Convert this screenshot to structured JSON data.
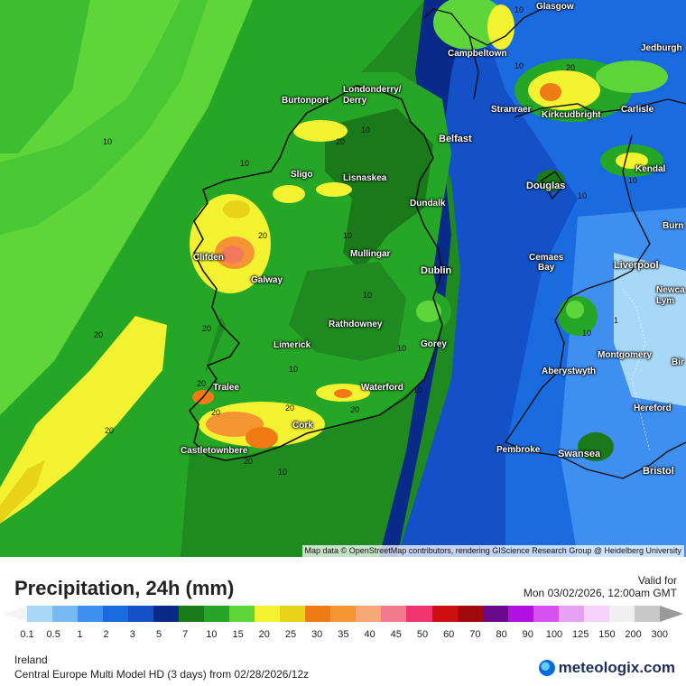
{
  "map": {
    "attribution": "Map data © OpenStreetMap contributors, rendering GIScience Research Group @ Heidelberg University",
    "cities": [
      {
        "name": "Glasgow"
      },
      {
        "name": "Campbeltown"
      },
      {
        "name": "Jedburgh"
      },
      {
        "name": "Londonderry/\nDerry"
      },
      {
        "name": "Burtonport"
      },
      {
        "name": "Stranraer"
      },
      {
        "name": "Kirkcudbright"
      },
      {
        "name": "Carlisle"
      },
      {
        "name": "Belfast"
      },
      {
        "name": "Sligo"
      },
      {
        "name": "Lisnaskea"
      },
      {
        "name": "Kendal"
      },
      {
        "name": "Douglas"
      },
      {
        "name": "Dundalk"
      },
      {
        "name": "Burn"
      },
      {
        "name": "Clifden"
      },
      {
        "name": "Mullingar"
      },
      {
        "name": "Galway"
      },
      {
        "name": "Dublin"
      },
      {
        "name": "Cemaes\nBay"
      },
      {
        "name": "Liverpool"
      },
      {
        "name": "Newca\nLym"
      },
      {
        "name": "Rathdowney"
      },
      {
        "name": "Limerick"
      },
      {
        "name": "Gorey"
      },
      {
        "name": "Montgomery"
      },
      {
        "name": "Aberystwyth"
      },
      {
        "name": "Bir"
      },
      {
        "name": "Tralee"
      },
      {
        "name": "Waterford"
      },
      {
        "name": "Hereford"
      },
      {
        "name": "Cork"
      },
      {
        "name": "Castletownbere"
      },
      {
        "name": "Pembroke"
      },
      {
        "name": "Swansea"
      },
      {
        "name": "Bristol"
      }
    ],
    "contour_labels": [
      "10",
      "10",
      "20",
      "10",
      "10",
      "10",
      "20",
      "20",
      "20",
      "20",
      "10",
      "10",
      "10",
      "20",
      "20",
      "20",
      "10",
      "10",
      "10",
      "20",
      "20",
      "20",
      "10",
      "10",
      "1",
      "10"
    ]
  },
  "footer": {
    "title": "Precipitation, 24h (mm)",
    "valid_label": "Valid for",
    "valid_date": "Mon 03/02/2026, 12:00am GMT",
    "region": "Ireland",
    "model": "Central Europe Multi Model HD (3 days) from  02/28/2026/12z",
    "logo_text": "meteologix.com"
  },
  "legend": {
    "ticks": [
      "0.1",
      "0.5",
      "1",
      "2",
      "3",
      "5",
      "7",
      "10",
      "15",
      "20",
      "25",
      "30",
      "35",
      "40",
      "45",
      "50",
      "60",
      "70",
      "80",
      "90",
      "100",
      "125",
      "150",
      "200",
      "300"
    ],
    "colors": [
      "#a8d8f8",
      "#78b8f0",
      "#3f8ff0",
      "#1a6be0",
      "#1450c8",
      "#0a2a8a",
      "#1a7a1a",
      "#26a626",
      "#5ed63a",
      "#f2f230",
      "#e8d21a",
      "#f07a14",
      "#f59432",
      "#f7a874",
      "#f27a8c",
      "#f03470",
      "#cc1010",
      "#a00a0a",
      "#6a0a8a",
      "#b010e0",
      "#d850f0",
      "#e8a0f4",
      "#f4d4fa",
      "#f0f0f0",
      "#c8c8c8"
    ]
  }
}
